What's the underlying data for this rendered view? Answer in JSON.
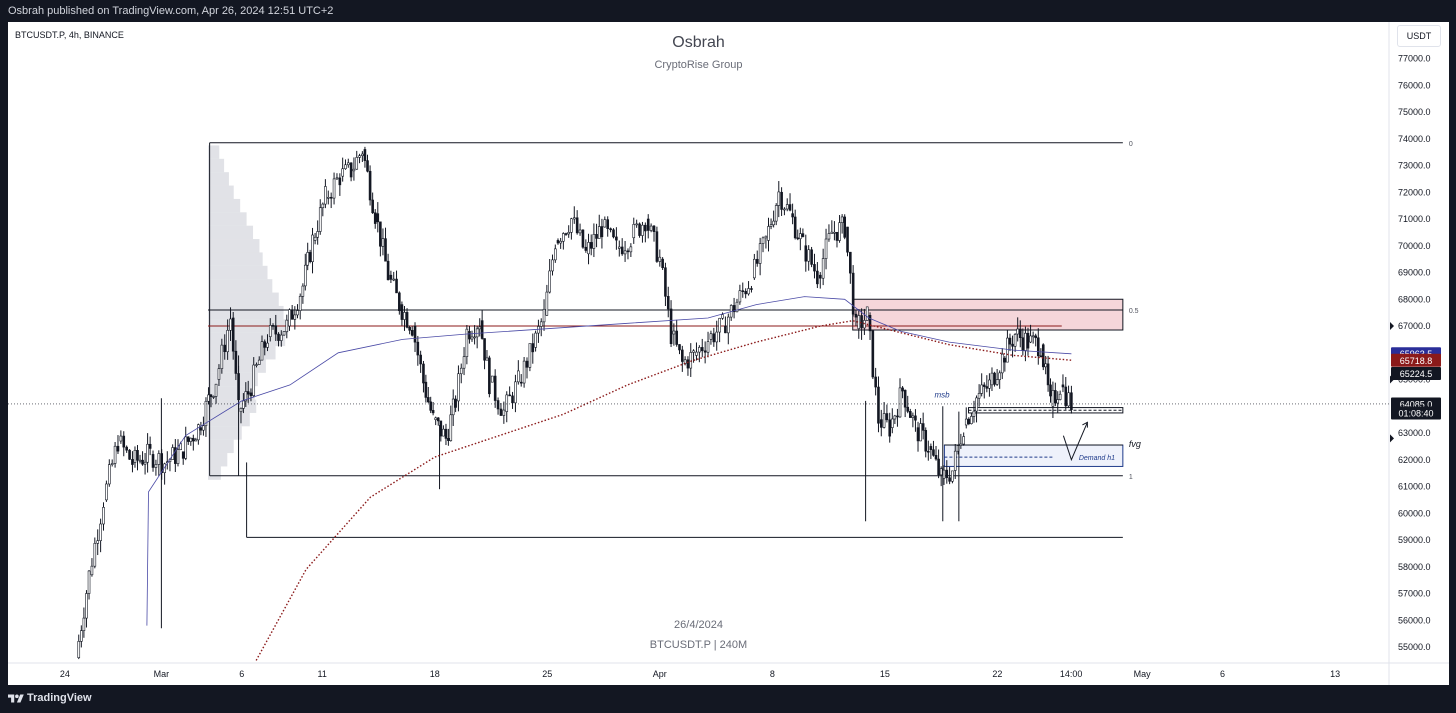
{
  "header": {
    "publish_line": "Osbrah published on TradingView.com, Apr 26, 2024 12:51 UTC+2"
  },
  "footer": {
    "brand": "TradingView"
  },
  "chart": {
    "symbol_line": "BTCUSDT.P, 4h, BINANCE",
    "watermark_title": "Osbrah",
    "watermark_subtitle": "CryptoRise Group",
    "watermark_date": "26/4/2024",
    "watermark_symbol": "BTCUSDT.P | 240M",
    "currency_button": "USDT"
  },
  "chart_data": {
    "type": "candlestick",
    "symbol": "BTCUSDT.P",
    "interval": "4h",
    "exchange": "BINANCE",
    "ylim": [
      54500,
      77800
    ],
    "y_ticks": [
      55000,
      56000,
      57000,
      58000,
      59000,
      60000,
      61000,
      62000,
      63000,
      64000,
      65000,
      66000,
      67000,
      68000,
      69000,
      70000,
      71000,
      72000,
      73000,
      74000,
      75000,
      76000,
      77000
    ],
    "y_tick_labels": [
      "55000.0",
      "56000.0",
      "57000.0",
      "58000.0",
      "59000.0",
      "60000.0",
      "61000.0",
      "62000.0",
      "63000.0",
      "64000.0",
      "65000.0",
      "66000.0",
      "67000.0",
      "68000.0",
      "69000.0",
      "70000.0",
      "71000.0",
      "72000.0",
      "73000.0",
      "74000.0",
      "75000.0",
      "76000.0",
      "77000.0"
    ],
    "x_ticks": [
      {
        "label": "24",
        "day": -5
      },
      {
        "label": "Mar",
        "day": 1
      },
      {
        "label": "6",
        "day": 6
      },
      {
        "label": "11",
        "day": 11
      },
      {
        "label": "18",
        "day": 18
      },
      {
        "label": "25",
        "day": 25
      },
      {
        "label": "Apr",
        "day": 32
      },
      {
        "label": "8",
        "day": 39
      },
      {
        "label": "15",
        "day": 46
      },
      {
        "label": "22",
        "day": 53
      },
      {
        "label": "14:00",
        "day": 57.58
      },
      {
        "label": "May",
        "day": 62
      },
      {
        "label": "6",
        "day": 67
      },
      {
        "label": "13",
        "day": 74
      }
    ],
    "price_badges": [
      {
        "label": "65963.5",
        "price": 65963.5,
        "bg": "#2a2e99",
        "fg": "#ffffff"
      },
      {
        "label": "65718.8",
        "price": 65718.8,
        "bg": "#8b1a1a",
        "fg": "#ffffff"
      },
      {
        "label": "65224.5",
        "price": 65224.5,
        "bg": "#131722",
        "fg": "#ffffff"
      },
      {
        "label": "64085.0",
        "price": 64085.0,
        "bg": "#131722",
        "fg": "#ffffff"
      },
      {
        "label": "01:08:40",
        "price": 63750,
        "bg": "#131722",
        "fg": "#ffffff"
      }
    ],
    "last_price": 64085.0,
    "fib_levels": [
      {
        "label": "0",
        "price": 73850
      },
      {
        "label": "0.5",
        "price": 67600
      },
      {
        "label": "1",
        "price": 61400
      }
    ],
    "annotations": {
      "msb": "msb",
      "fvg": "fvg",
      "demand": "Demand h1"
    },
    "price_path": [
      {
        "day": -4.3,
        "price": 54600
      },
      {
        "day": -3.5,
        "price": 57700
      },
      {
        "day": -2.6,
        "price": 60500
      },
      {
        "day": -1.7,
        "price": 62700
      },
      {
        "day": -0.8,
        "price": 61900
      },
      {
        "day": 0.3,
        "price": 62200
      },
      {
        "day": 1.2,
        "price": 61900
      },
      {
        "day": 2.2,
        "price": 62300
      },
      {
        "day": 3.3,
        "price": 63200
      },
      {
        "day": 4.4,
        "price": 65000
      },
      {
        "day": 5.3,
        "price": 67300
      },
      {
        "day": 5.8,
        "price": 63800
      },
      {
        "day": 6.4,
        "price": 64500
      },
      {
        "day": 7.6,
        "price": 66600
      },
      {
        "day": 8.8,
        "price": 67000
      },
      {
        "day": 9.8,
        "price": 68500
      },
      {
        "day": 10.4,
        "price": 70200
      },
      {
        "day": 11.2,
        "price": 71800
      },
      {
        "day": 12.1,
        "price": 72600
      },
      {
        "day": 12.8,
        "price": 72800
      },
      {
        "day": 13.5,
        "price": 73600
      },
      {
        "day": 14.3,
        "price": 71200
      },
      {
        "day": 15.1,
        "price": 68900
      },
      {
        "day": 15.8,
        "price": 67800
      },
      {
        "day": 16.6,
        "price": 67000
      },
      {
        "day": 17.3,
        "price": 64900
      },
      {
        "day": 17.9,
        "price": 63500
      },
      {
        "day": 18.7,
        "price": 62800
      },
      {
        "day": 19.3,
        "price": 64200
      },
      {
        "day": 20.0,
        "price": 66800
      },
      {
        "day": 20.8,
        "price": 67200
      },
      {
        "day": 21.4,
        "price": 64900
      },
      {
        "day": 22.3,
        "price": 63800
      },
      {
        "day": 23.2,
        "price": 64900
      },
      {
        "day": 24.1,
        "price": 66200
      },
      {
        "day": 24.8,
        "price": 67400
      },
      {
        "day": 25.5,
        "price": 70200
      },
      {
        "day": 26.5,
        "price": 71000
      },
      {
        "day": 27.4,
        "price": 69700
      },
      {
        "day": 28.4,
        "price": 70700
      },
      {
        "day": 29.3,
        "price": 69900
      },
      {
        "day": 30.2,
        "price": 70300
      },
      {
        "day": 31.1,
        "price": 71000
      },
      {
        "day": 32.0,
        "price": 69500
      },
      {
        "day": 32.7,
        "price": 66700
      },
      {
        "day": 33.4,
        "price": 65600
      },
      {
        "day": 34.1,
        "price": 65900
      },
      {
        "day": 35.0,
        "price": 66500
      },
      {
        "day": 35.9,
        "price": 67000
      },
      {
        "day": 36.8,
        "price": 67900
      },
      {
        "day": 37.7,
        "price": 68800
      },
      {
        "day": 38.6,
        "price": 70200
      },
      {
        "day": 39.4,
        "price": 72000
      },
      {
        "day": 40.1,
        "price": 71200
      },
      {
        "day": 40.9,
        "price": 70000
      },
      {
        "day": 41.8,
        "price": 68900
      },
      {
        "day": 42.7,
        "price": 70500
      },
      {
        "day": 43.5,
        "price": 70700
      },
      {
        "day": 44.2,
        "price": 66900
      },
      {
        "day": 44.9,
        "price": 67400
      },
      {
        "day": 45.6,
        "price": 63500
      },
      {
        "day": 46.3,
        "price": 63200
      },
      {
        "day": 47.1,
        "price": 64600
      },
      {
        "day": 47.9,
        "price": 63200
      },
      {
        "day": 48.7,
        "price": 62500
      },
      {
        "day": 49.5,
        "price": 61300
      },
      {
        "day": 50.2,
        "price": 61600
      },
      {
        "day": 50.9,
        "price": 63300
      },
      {
        "day": 51.7,
        "price": 64300
      },
      {
        "day": 52.5,
        "price": 64800
      },
      {
        "day": 53.3,
        "price": 65800
      },
      {
        "day": 54.1,
        "price": 66700
      },
      {
        "day": 54.9,
        "price": 66400
      },
      {
        "day": 55.7,
        "price": 66300
      },
      {
        "day": 56.3,
        "price": 64000
      },
      {
        "day": 56.9,
        "price": 64800
      },
      {
        "day": 57.6,
        "price": 64085
      }
    ],
    "ema_slow_path": [
      {
        "day": 6.9,
        "price": 54500
      },
      {
        "day": 10,
        "price": 57900
      },
      {
        "day": 14,
        "price": 60600
      },
      {
        "day": 18,
        "price": 62100
      },
      {
        "day": 22,
        "price": 62900
      },
      {
        "day": 26,
        "price": 63700
      },
      {
        "day": 30,
        "price": 64800
      },
      {
        "day": 34,
        "price": 65700
      },
      {
        "day": 38,
        "price": 66400
      },
      {
        "day": 42,
        "price": 67000
      },
      {
        "day": 44,
        "price": 67200
      },
      {
        "day": 46,
        "price": 66900
      },
      {
        "day": 50,
        "price": 66300
      },
      {
        "day": 54,
        "price": 65900
      },
      {
        "day": 57.6,
        "price": 65720
      }
    ],
    "vwap_path": [
      {
        "day": 0.1,
        "price": 55800
      },
      {
        "day": 0.2,
        "price": 60800
      },
      {
        "day": 2.5,
        "price": 62900
      },
      {
        "day": 6,
        "price": 64200
      },
      {
        "day": 9,
        "price": 64800
      },
      {
        "day": 12,
        "price": 66000
      },
      {
        "day": 16,
        "price": 66500
      },
      {
        "day": 20,
        "price": 66700
      },
      {
        "day": 25,
        "price": 66900
      },
      {
        "day": 30,
        "price": 67100
      },
      {
        "day": 35,
        "price": 67300
      },
      {
        "day": 38,
        "price": 67800
      },
      {
        "day": 41,
        "price": 68100
      },
      {
        "day": 43.5,
        "price": 68000
      },
      {
        "day": 45,
        "price": 67300
      },
      {
        "day": 47,
        "price": 66800
      },
      {
        "day": 50,
        "price": 66400
      },
      {
        "day": 54,
        "price": 66100
      },
      {
        "day": 57.6,
        "price": 65960
      }
    ],
    "volume_profile": {
      "start_day": 3.9,
      "bins": [
        {
          "price": 73500,
          "len": 0.7
        },
        {
          "price": 73000,
          "len": 1.0
        },
        {
          "price": 72500,
          "len": 1.3
        },
        {
          "price": 72000,
          "len": 1.6
        },
        {
          "price": 71500,
          "len": 2.0
        },
        {
          "price": 71000,
          "len": 2.4
        },
        {
          "price": 70500,
          "len": 2.8
        },
        {
          "price": 70000,
          "len": 3.2
        },
        {
          "price": 69500,
          "len": 3.4
        },
        {
          "price": 69000,
          "len": 3.7
        },
        {
          "price": 68500,
          "len": 4.0
        },
        {
          "price": 68000,
          "len": 4.4
        },
        {
          "price": 67500,
          "len": 4.7
        },
        {
          "price": 67000,
          "len": 5.0
        },
        {
          "price": 66500,
          "len": 4.8
        },
        {
          "price": 66000,
          "len": 4.2
        },
        {
          "price": 65500,
          "len": 3.6
        },
        {
          "price": 65000,
          "len": 3.1
        },
        {
          "price": 64500,
          "len": 2.9
        },
        {
          "price": 64000,
          "len": 3.0
        },
        {
          "price": 63500,
          "len": 2.6
        },
        {
          "price": 63000,
          "len": 2.1
        },
        {
          "price": 62500,
          "len": 1.6
        },
        {
          "price": 62000,
          "len": 1.2
        },
        {
          "price": 61500,
          "len": 0.8
        }
      ]
    },
    "zones": {
      "supply": {
        "start_day": 44,
        "end_day": 60.8,
        "top": 68000,
        "bottom": 66850,
        "fill": "#f5d6da"
      },
      "msb_box": {
        "start_day": 51.2,
        "end_day": 60.8,
        "top": 63950,
        "bottom": 63750
      },
      "fvg_box": {
        "start_day": 49.7,
        "end_day": 60.8,
        "top": 62550,
        "bottom": 61750
      },
      "range_box": {
        "start_day": 4.0,
        "end_day": 60.8,
        "top": 73850,
        "bottom": 61400
      },
      "lower_line": {
        "start_day": 6.3,
        "end_day": 60.8,
        "price": 59100
      },
      "mid_lines": [
        {
          "start_day": 3.9,
          "end_day": 60.8,
          "price": 67600,
          "color": "#131722"
        },
        {
          "start_day": 3.9,
          "end_day": 57.0,
          "price": 67000,
          "color": "#8b1a1a"
        }
      ]
    },
    "grid": false,
    "legend": "none"
  },
  "colors": {
    "background": "#ffffff",
    "candle": "#131722",
    "ema_slow": "#8b1a1a",
    "vwap": "#4a4aa6",
    "volume_profile": "#c8cbd3"
  }
}
